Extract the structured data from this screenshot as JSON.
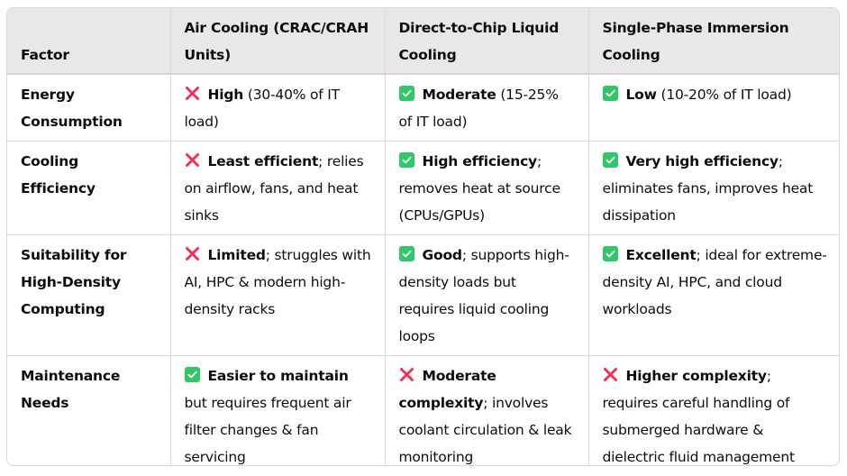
{
  "table": {
    "headers": [
      "Factor",
      "Air Cooling (CRAC/CRAH Units)",
      "Direct-to-Chip Liquid Cooling",
      "Single-Phase Immersion Cooling"
    ],
    "rows": [
      {
        "factor": "Energy Consumption",
        "cells": [
          {
            "icon": "cross-icon",
            "bold": "High",
            "rest": " (30-40% of IT load)"
          },
          {
            "icon": "check-icon",
            "bold": "Moderate",
            "rest": " (15-25% of IT load)"
          },
          {
            "icon": "check-icon",
            "bold": "Low",
            "rest": " (10-20% of IT load)"
          }
        ]
      },
      {
        "factor": "Cooling Efficiency",
        "cells": [
          {
            "icon": "cross-icon",
            "bold": "Least efficient",
            "rest": "; relies on airflow, fans, and heat sinks"
          },
          {
            "icon": "check-icon",
            "bold": "High efficiency",
            "rest": "; removes heat at source (CPUs/GPUs)"
          },
          {
            "icon": "check-icon",
            "bold": "Very high efficiency",
            "rest": "; eliminates fans, improves heat dissipation"
          }
        ]
      },
      {
        "factor": "Suitability for High-Density Computing",
        "cells": [
          {
            "icon": "cross-icon",
            "bold": "Limited",
            "rest": "; struggles with AI, HPC & modern high-density racks"
          },
          {
            "icon": "check-icon",
            "bold": "Good",
            "rest": "; supports high-density loads but requires liquid cooling loops"
          },
          {
            "icon": "check-icon",
            "bold": "Excellent",
            "rest": "; ideal for extreme-density AI, HPC, and cloud workloads"
          }
        ]
      },
      {
        "factor": "Maintenance Needs",
        "cells": [
          {
            "icon": "check-icon",
            "bold": "Easier to maintain",
            "rest": " but requires frequent air filter changes & fan servicing"
          },
          {
            "icon": "cross-icon",
            "bold": "Moderate complexity",
            "rest": "; involves coolant circulation & leak monitoring"
          },
          {
            "icon": "cross-icon",
            "bold": "Higher complexity",
            "rest": "; requires careful handling of submerged hardware & dielectric fluid management"
          }
        ]
      }
    ]
  },
  "colors": {
    "check": "#2ec866",
    "cross": "#f0325a",
    "header_bg": "#e8e8e8",
    "border": "#dcdcdc"
  }
}
